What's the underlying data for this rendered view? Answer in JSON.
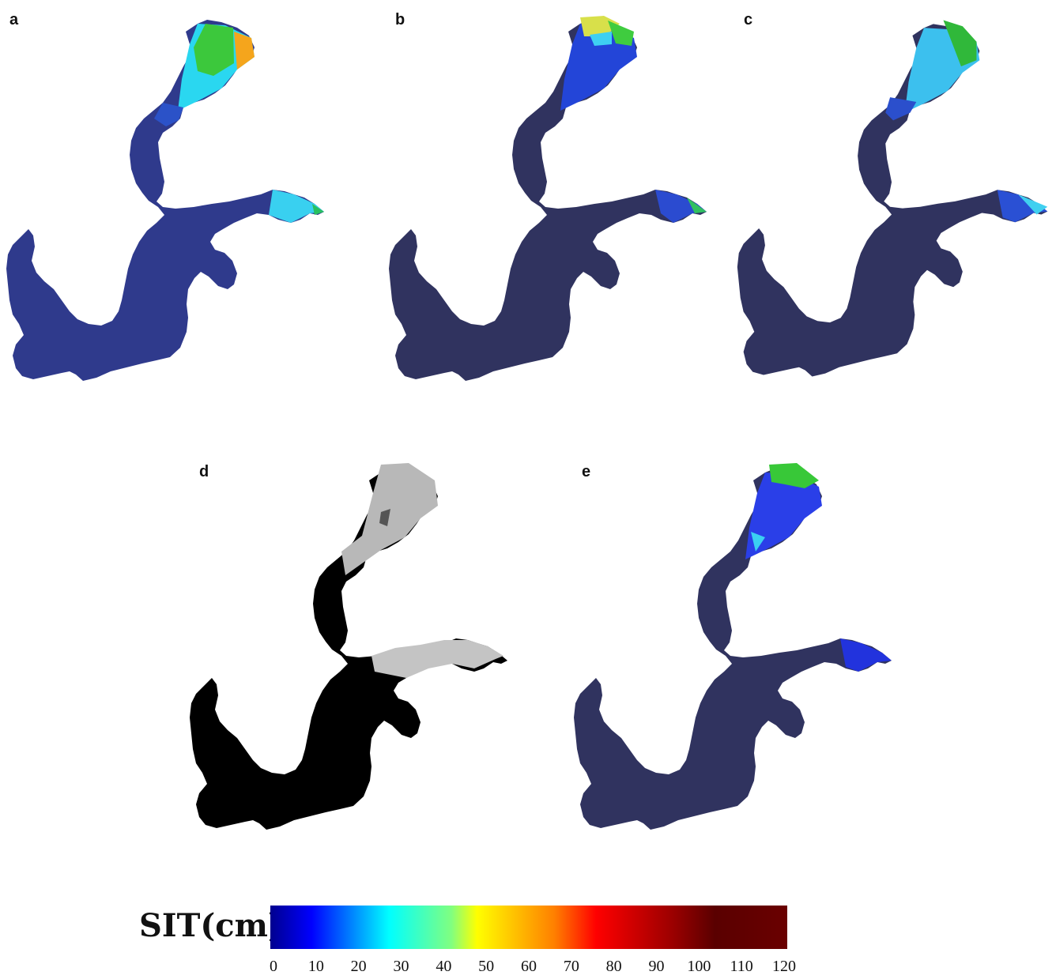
{
  "panels": [
    {
      "label": "a",
      "ice": "model_a"
    },
    {
      "label": "b",
      "ice": "model_b"
    },
    {
      "label": "c",
      "ice": "model_c"
    },
    {
      "label": "d",
      "ice": "sar"
    },
    {
      "label": "e",
      "ice": "model_e"
    }
  ],
  "colors": {
    "sea_ice_free": "#303060",
    "sar_sea": "#000000",
    "sar_ice_light": "#cfcfcf",
    "sar_ice_mid": "#9a9a9a"
  },
  "legend": {
    "title": "SIT(cm)",
    "ticks": [
      "0",
      "10",
      "20",
      "30",
      "40",
      "50",
      "60",
      "70",
      "80",
      "90",
      "100",
      "110",
      "120"
    ],
    "min": 0,
    "max": 120,
    "colormap": [
      "#00008f",
      "#0000ff",
      "#00ffff",
      "#ffff00",
      "#ff7f00",
      "#ff0000",
      "#7f0000",
      "#5a0000"
    ]
  }
}
